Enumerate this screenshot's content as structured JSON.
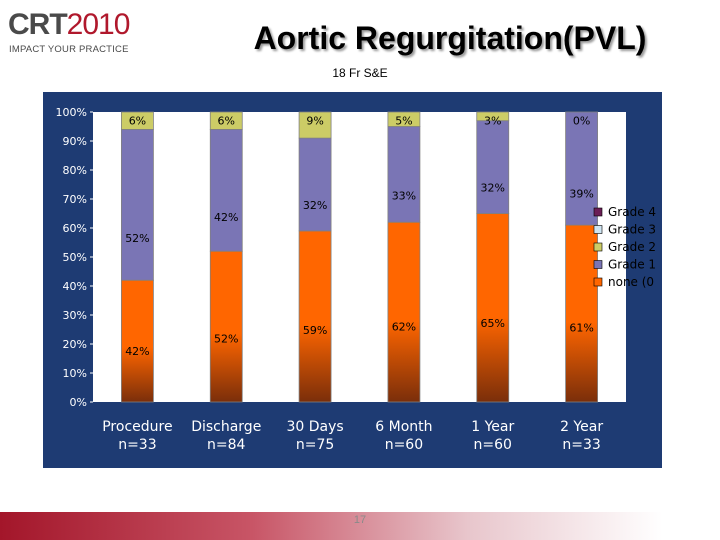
{
  "logo": {
    "crt": "CRT",
    "year": "2010",
    "tagline": "IMPACT YOUR PRACTICE"
  },
  "title": "Aortic Regurgitation(PVL)",
  "subtitle": "18 Fr S&E",
  "page_number": "17",
  "colors": {
    "plot_background": "#1e3b73",
    "bar_outline": "#808080",
    "none": "#ff6600",
    "grade1": "#7a75b5",
    "grade2": "#cccc66",
    "grade3": "#cfe5f2",
    "grade4": "#6b1e56",
    "none_gradient_dark": "#7a2e0a"
  },
  "chart_data": {
    "type": "bar",
    "stacked": true,
    "categories": [
      [
        "Procedure",
        "n=33"
      ],
      [
        "Discharge",
        "n=84"
      ],
      [
        "30 Days",
        "n=75"
      ],
      [
        "6 Month",
        "n=60"
      ],
      [
        "1 Year",
        "n=60"
      ],
      [
        "2 Year",
        "n=33"
      ]
    ],
    "series": [
      {
        "name": "none (0",
        "values": [
          42,
          52,
          59,
          62,
          65,
          61
        ],
        "labels": [
          "42%",
          "52%",
          "59%",
          "62%",
          "65%",
          "61%"
        ]
      },
      {
        "name": "Grade 1",
        "values": [
          52,
          42,
          32,
          33,
          32,
          39
        ],
        "labels": [
          "52%",
          "42%",
          "32%",
          "33%",
          "32%",
          "39%"
        ]
      },
      {
        "name": "Grade 2",
        "values": [
          6,
          6,
          9,
          5,
          3,
          0
        ],
        "labels": [
          "6%",
          "6%",
          "9%",
          "5%",
          "3%",
          "0%"
        ]
      },
      {
        "name": "Grade 3",
        "values": [
          0,
          0,
          0,
          0,
          0,
          0
        ],
        "labels": []
      },
      {
        "name": "Grade 4",
        "values": [
          0,
          0,
          0,
          0,
          0,
          0
        ],
        "labels": []
      }
    ],
    "y_ticks": [
      "0%",
      "10%",
      "20%",
      "30%",
      "40%",
      "50%",
      "60%",
      "70%",
      "80%",
      "90%",
      "100%"
    ],
    "ylim": [
      0,
      100
    ],
    "legend_position": "right",
    "grid": false
  }
}
